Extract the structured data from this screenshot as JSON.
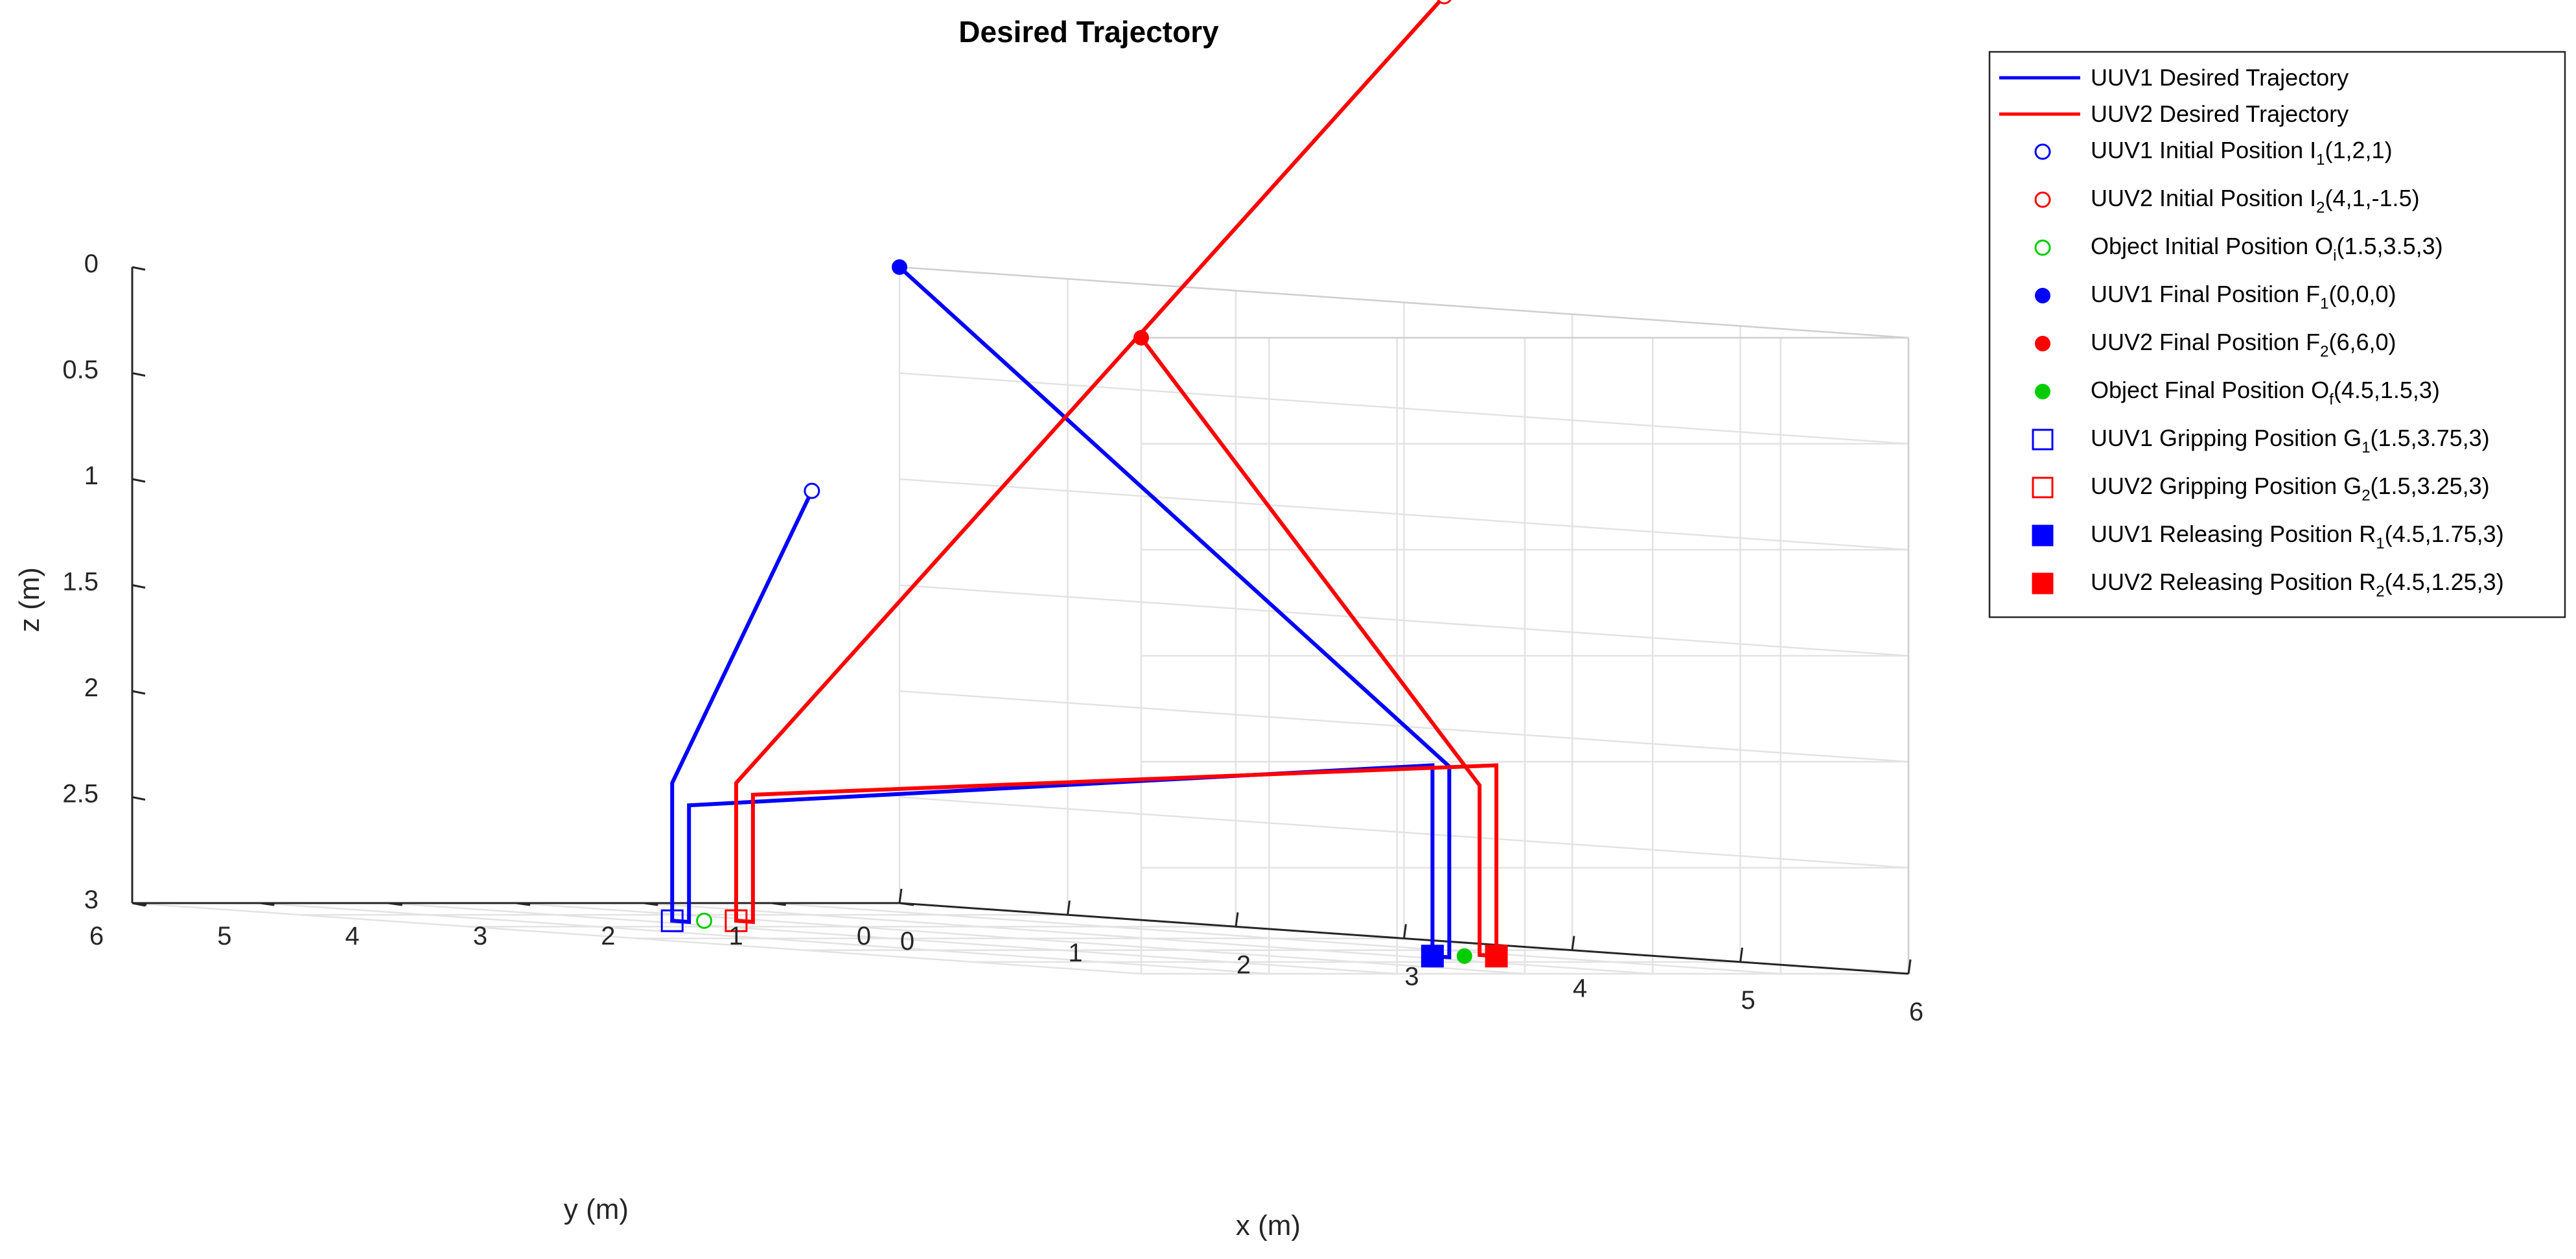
{
  "chart_data": {
    "type": "line3d",
    "title": "Desired Trajectory",
    "xlabel": "x (m)",
    "ylabel": "y (m)",
    "zlabel": "z (m)",
    "xlim": [
      0,
      6
    ],
    "ylim": [
      0,
      6
    ],
    "zlim": [
      0,
      3
    ],
    "z_reversed": true,
    "grid": true,
    "legend_position": "top-right outside",
    "x_ticks": [
      "0",
      "1",
      "2",
      "3",
      "4",
      "5",
      "6"
    ],
    "y_ticks": [
      "0",
      "1",
      "2",
      "3",
      "4",
      "5",
      "6"
    ],
    "z_ticks": [
      "0",
      "0.5",
      "1",
      "1.5",
      "2",
      "2.5",
      "3"
    ],
    "colors": {
      "uuv1": "#0000ff",
      "uuv2": "#ff0000",
      "object": "#00cc00",
      "axis": "#262626",
      "grid": "#e3e3e3"
    },
    "series": [
      {
        "name": "UUV1 Desired Trajectory",
        "color": "#0000ff",
        "points": [
          [
            1,
            2,
            1
          ],
          [
            1.5,
            3.75,
            2.35
          ],
          [
            1.5,
            3.75,
            3
          ],
          [
            1.6,
            3.75,
            3
          ],
          [
            1.6,
            3.75,
            2.45
          ],
          [
            4.5,
            1.75,
            2.1
          ],
          [
            4.5,
            1.75,
            3
          ],
          [
            4.6,
            1.75,
            3
          ],
          [
            4.6,
            1.75,
            2.1
          ],
          [
            0,
            0,
            0
          ]
        ]
      },
      {
        "name": "UUV2 Desired Trajectory",
        "color": "#ff0000",
        "points": [
          [
            4,
            1,
            -1.5
          ],
          [
            1.5,
            3.25,
            2.35
          ],
          [
            1.5,
            3.25,
            3
          ],
          [
            1.6,
            3.25,
            3
          ],
          [
            1.6,
            3.25,
            2.4
          ],
          [
            4.5,
            1.25,
            2.1
          ],
          [
            4.5,
            1.25,
            3
          ],
          [
            4.4,
            1.25,
            3
          ],
          [
            4.4,
            1.25,
            2.2
          ],
          [
            6,
            6,
            0
          ]
        ]
      }
    ],
    "markers": [
      {
        "name": "UUV1 Initial Position I",
        "sub": "1",
        "coords": "(1,2,1)",
        "point": [
          1,
          2,
          1
        ],
        "shape": "circle-open",
        "color": "#0000ff"
      },
      {
        "name": "UUV2 Initial Position I",
        "sub": "2",
        "coords": "(4,1,-1.5)",
        "point": [
          4,
          1,
          -1.5
        ],
        "shape": "circle-open",
        "color": "#ff0000"
      },
      {
        "name": "Object Initial Position O",
        "sub": "i",
        "coords": "(1.5,3.5,3)",
        "point": [
          1.5,
          3.5,
          3
        ],
        "shape": "circle-open",
        "color": "#00cc00"
      },
      {
        "name": "UUV1 Final Position F",
        "sub": "1",
        "coords": "(0,0,0)",
        "point": [
          0,
          0,
          0
        ],
        "shape": "circle-filled",
        "color": "#0000ff"
      },
      {
        "name": "UUV2 Final Position F",
        "sub": "2",
        "coords": "(6,6,0)",
        "point": [
          6,
          6,
          0
        ],
        "shape": "circle-filled",
        "color": "#ff0000"
      },
      {
        "name": "Object Final Position O",
        "sub": "f",
        "coords": "(4.5,1.5,3)",
        "point": [
          4.5,
          1.5,
          3
        ],
        "shape": "circle-filled",
        "color": "#00cc00"
      },
      {
        "name": "UUV1 Gripping Position G",
        "sub": "1",
        "coords": "(1.5,3.75,3)",
        "point": [
          1.5,
          3.75,
          3
        ],
        "shape": "square-open",
        "color": "#0000ff"
      },
      {
        "name": "UUV2 Gripping Position G",
        "sub": "2",
        "coords": "(1.5,3.25,3)",
        "point": [
          1.5,
          3.25,
          3
        ],
        "shape": "square-open",
        "color": "#ff0000"
      },
      {
        "name": "UUV1 Releasing Position R",
        "sub": "1",
        "coords": "(4.5,1.75,3)",
        "point": [
          4.5,
          1.75,
          3
        ],
        "shape": "square-filled",
        "color": "#0000ff"
      },
      {
        "name": "UUV2 Releasing Position R",
        "sub": "2",
        "coords": "(4.5,1.25,3)",
        "point": [
          4.5,
          1.25,
          3
        ],
        "shape": "square-filled",
        "color": "#ff0000"
      }
    ]
  }
}
